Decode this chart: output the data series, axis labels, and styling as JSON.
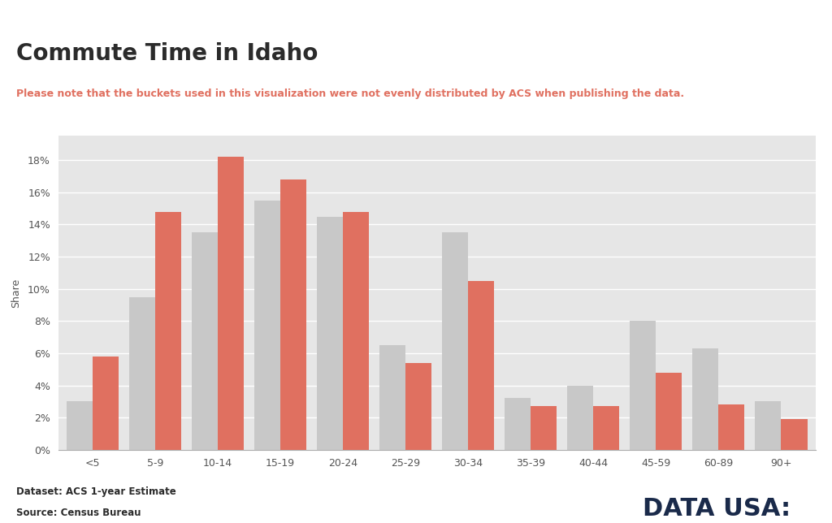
{
  "title": "Commute Time in Idaho",
  "subtitle": "Please note that the buckets used in this visualization were not evenly distributed by ACS when publishing the data.",
  "ylabel": "Share",
  "categories": [
    "<5",
    "5-9",
    "10-14",
    "15-19",
    "20-24",
    "25-29",
    "30-34",
    "35-39",
    "40-44",
    "45-59",
    "60-89",
    "90+"
  ],
  "idaho_values": [
    0.03,
    0.095,
    0.135,
    0.155,
    0.145,
    0.065,
    0.135,
    0.032,
    0.04,
    0.08,
    0.063,
    0.03
  ],
  "national_values": [
    0.058,
    0.148,
    0.182,
    0.168,
    0.148,
    0.054,
    0.105,
    0.027,
    0.027,
    0.048,
    0.028,
    0.019
  ],
  "idaho_color": "#c8c8c8",
  "national_color": "#e07060",
  "fig_bg_color": "#ffffff",
  "plot_bg_color": "#e6e6e6",
  "title_color": "#2b2b2b",
  "subtitle_color": "#e07060",
  "footer_color": "#2b2b2b",
  "datausa_color": "#1a2a4a",
  "tick_color": "#555555",
  "grid_color": "#ffffff",
  "ylim": [
    0,
    0.195
  ],
  "yticks": [
    0.0,
    0.02,
    0.04,
    0.06,
    0.08,
    0.1,
    0.12,
    0.14,
    0.16,
    0.18
  ],
  "ytick_labels": [
    "0%",
    "2%",
    "4%",
    "6%",
    "8%",
    "10%",
    "12%",
    "14%",
    "16%",
    "18%"
  ],
  "dataset_label": "Dataset: ACS 1-year Estimate",
  "source_label": "Source: Census Bureau",
  "datausa_label": "DATA USA:"
}
